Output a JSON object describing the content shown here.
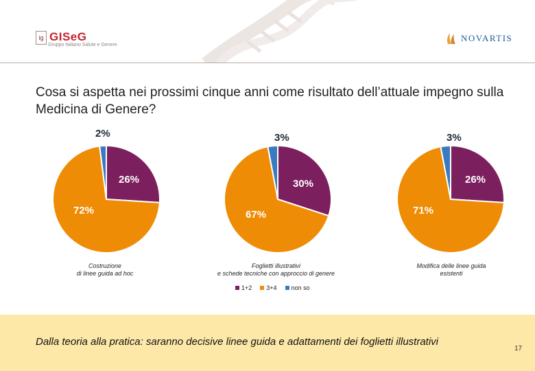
{
  "header": {
    "gis_logo_box": "ig",
    "gis_logo_name": "GISeG",
    "gis_logo_sub": "Gruppo Italiano Salute e Genere",
    "novartis_logo": "NOVARTIS"
  },
  "title": "Cosa si aspetta nei prossimi cinque anni come risultato dell’attuale impegno sulla Medicina di Genere?",
  "colors": {
    "purple": "#7b1f5e",
    "orange": "#ef8c06",
    "blue": "#3a7ac0"
  },
  "chart_data": [
    {
      "type": "pie",
      "caption_lines": [
        "Costruzione",
        "di linee guida ad hoc"
      ],
      "slices": [
        {
          "label": "1+2",
          "value": 26,
          "text": "26%"
        },
        {
          "label": "3+4",
          "value": 72,
          "text": "72%"
        },
        {
          "label": "non so",
          "value": 2,
          "text": "2%"
        }
      ]
    },
    {
      "type": "pie",
      "caption_lines": [
        "Foglietti illustrativi",
        "e schede tecniche con approccio di genere"
      ],
      "slices": [
        {
          "label": "1+2",
          "value": 30,
          "text": "30%"
        },
        {
          "label": "3+4",
          "value": 67,
          "text": "67%"
        },
        {
          "label": "non so",
          "value": 3,
          "text": "3%"
        }
      ]
    },
    {
      "type": "pie",
      "caption_lines": [
        "Modifica delle linee guida",
        "esistenti"
      ],
      "slices": [
        {
          "label": "1+2",
          "value": 26,
          "text": "26%"
        },
        {
          "label": "3+4",
          "value": 71,
          "text": "71%"
        },
        {
          "label": "non so",
          "value": 3,
          "text": "3%"
        }
      ]
    }
  ],
  "legend": [
    {
      "label": "1+2",
      "color": "#7b1f5e"
    },
    {
      "label": "3+4",
      "color": "#ef8c06"
    },
    {
      "label": "non so",
      "color": "#3a7ac0"
    }
  ],
  "footer": {
    "text": "Dalla teoria alla pratica: saranno decisive linee guida e adattamenti dei foglietti illustrativi",
    "page_number": "17"
  }
}
